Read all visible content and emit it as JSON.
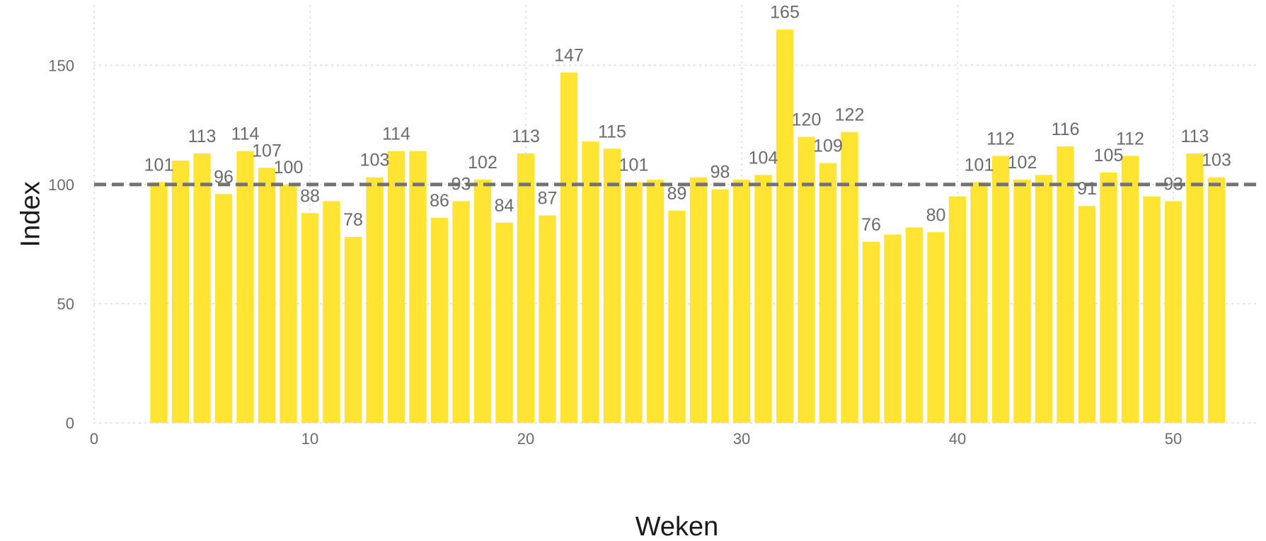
{
  "chart_data": {
    "type": "bar",
    "title": "",
    "xlabel": "Weken",
    "ylabel": "Index",
    "xlim": [
      0,
      54
    ],
    "ylim": [
      0,
      175
    ],
    "xticks": [
      0,
      10,
      20,
      30,
      40,
      50
    ],
    "yticks": [
      0,
      50,
      100,
      150
    ],
    "grid": true,
    "reference_line": {
      "y": 100,
      "style": "dashed",
      "color": "#737373"
    },
    "bar_color": "#FFE433",
    "x": [
      3,
      4,
      5,
      6,
      7,
      8,
      9,
      10,
      11,
      12,
      13,
      14,
      15,
      16,
      17,
      18,
      19,
      20,
      21,
      22,
      23,
      24,
      25,
      26,
      27,
      28,
      29,
      30,
      31,
      32,
      33,
      34,
      35,
      36,
      37,
      38,
      39,
      40,
      41,
      42,
      43,
      44,
      45,
      46,
      47,
      48,
      49,
      50,
      51,
      52
    ],
    "values": [
      101,
      110,
      113,
      96,
      114,
      107,
      100,
      88,
      93,
      78,
      103,
      114,
      114,
      86,
      93,
      102,
      84,
      113,
      87,
      147,
      118,
      115,
      101,
      102,
      89,
      103,
      98,
      102,
      104,
      165,
      120,
      109,
      122,
      76,
      79,
      82,
      80,
      95,
      101,
      112,
      102,
      104,
      116,
      91,
      105,
      112,
      95,
      93,
      113,
      103
    ],
    "labels": [
      "101",
      "",
      "113",
      "96",
      "114",
      "107",
      "100",
      "88",
      "",
      "78",
      "103",
      "114",
      "",
      "86",
      "93",
      "102",
      "84",
      "113",
      "87",
      "147",
      "",
      "115",
      "101",
      "",
      "89",
      "",
      "98",
      "",
      "104",
      "165",
      "120",
      "109",
      "122",
      "76",
      "",
      "",
      "80",
      "",
      "101",
      "112",
      "102",
      "",
      "116",
      "91",
      "105",
      "112",
      "",
      "93",
      "113",
      "103"
    ]
  }
}
